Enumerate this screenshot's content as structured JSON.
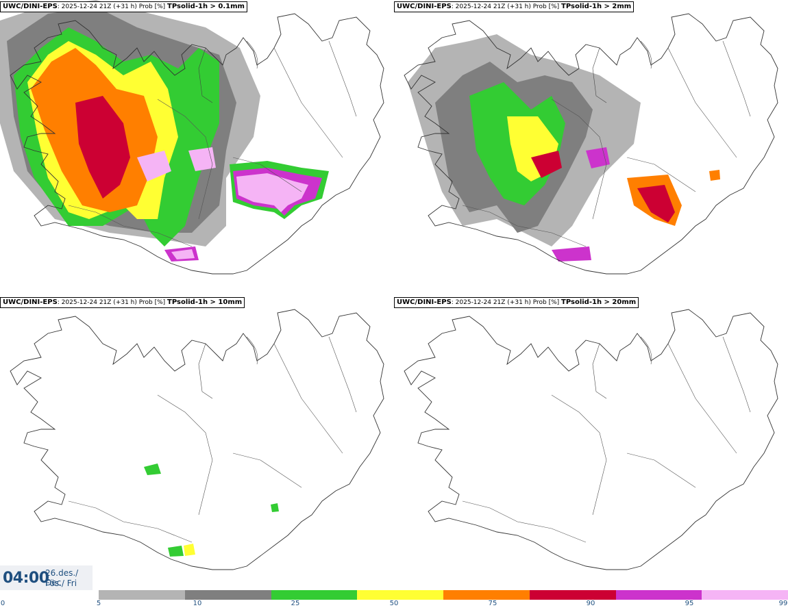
{
  "panels": [
    {
      "model": "UWC/DINI-EPS",
      "run": ": 2025-12-24 21Z (+31 h) Prob [%] ",
      "product": "TPsolid-1h > 0.1mm"
    },
    {
      "model": "UWC/DINI-EPS",
      "run": ": 2025-12-24 21Z (+31 h) Prob [%] ",
      "product": "TPsolid-1h > 2mm"
    },
    {
      "model": "UWC/DINI-EPS",
      "run": ": 2025-12-24 21Z (+31 h) Prob [%] ",
      "product": "TPsolid-1h > 10mm"
    },
    {
      "model": "UWC/DINI-EPS",
      "run": ": 2025-12-24 21Z (+31 h) Prob [%] ",
      "product": "TPsolid-1h > 20mm"
    }
  ],
  "valid_time": {
    "time": "04:00",
    "date_line": "26.des./ Dec",
    "day_line": "Fös./ Fri"
  },
  "legend": {
    "ticks": [
      "0",
      "5",
      "10",
      "25",
      "50",
      "75",
      "90",
      "95",
      "99"
    ],
    "colors": [
      "#b4b4b4",
      "#7f7f7f",
      "#33cc33",
      "#ffff33",
      "#ff7f00",
      "#cc0033",
      "#cc33cc",
      "#f5b4f5"
    ]
  }
}
